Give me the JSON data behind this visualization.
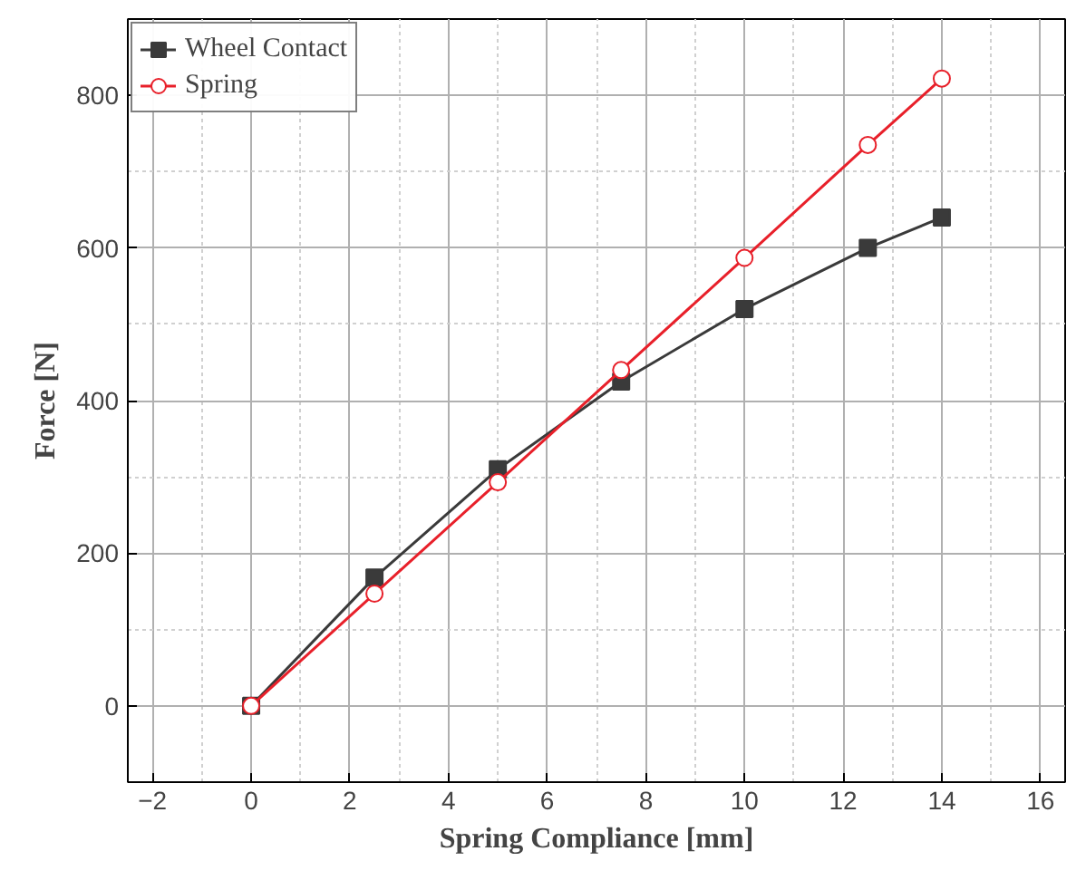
{
  "chart_data": {
    "type": "line",
    "xlabel": "Spring Compliance [mm]",
    "ylabel": "Force [N]",
    "x": [
      0,
      2.5,
      5,
      7.5,
      10,
      12.5,
      14
    ],
    "series": [
      {
        "name": "Wheel Contact",
        "color": "#3a3a3a",
        "marker": "square",
        "values": [
          0,
          168,
          310,
          425,
          520,
          600,
          640
        ]
      },
      {
        "name": "Spring",
        "color": "#e8202a",
        "marker": "circle",
        "values": [
          0,
          147,
          293,
          440,
          587,
          735,
          822
        ]
      }
    ],
    "xlim": [
      -2.5,
      16.5
    ],
    "xticks": [
      -2,
      0,
      2,
      4,
      6,
      8,
      10,
      12,
      14,
      16
    ],
    "ylim": [
      -100,
      900
    ],
    "yticks": [
      0,
      200,
      400,
      600,
      800
    ],
    "grid": true,
    "legend": "top left",
    "line_style": "solid"
  }
}
